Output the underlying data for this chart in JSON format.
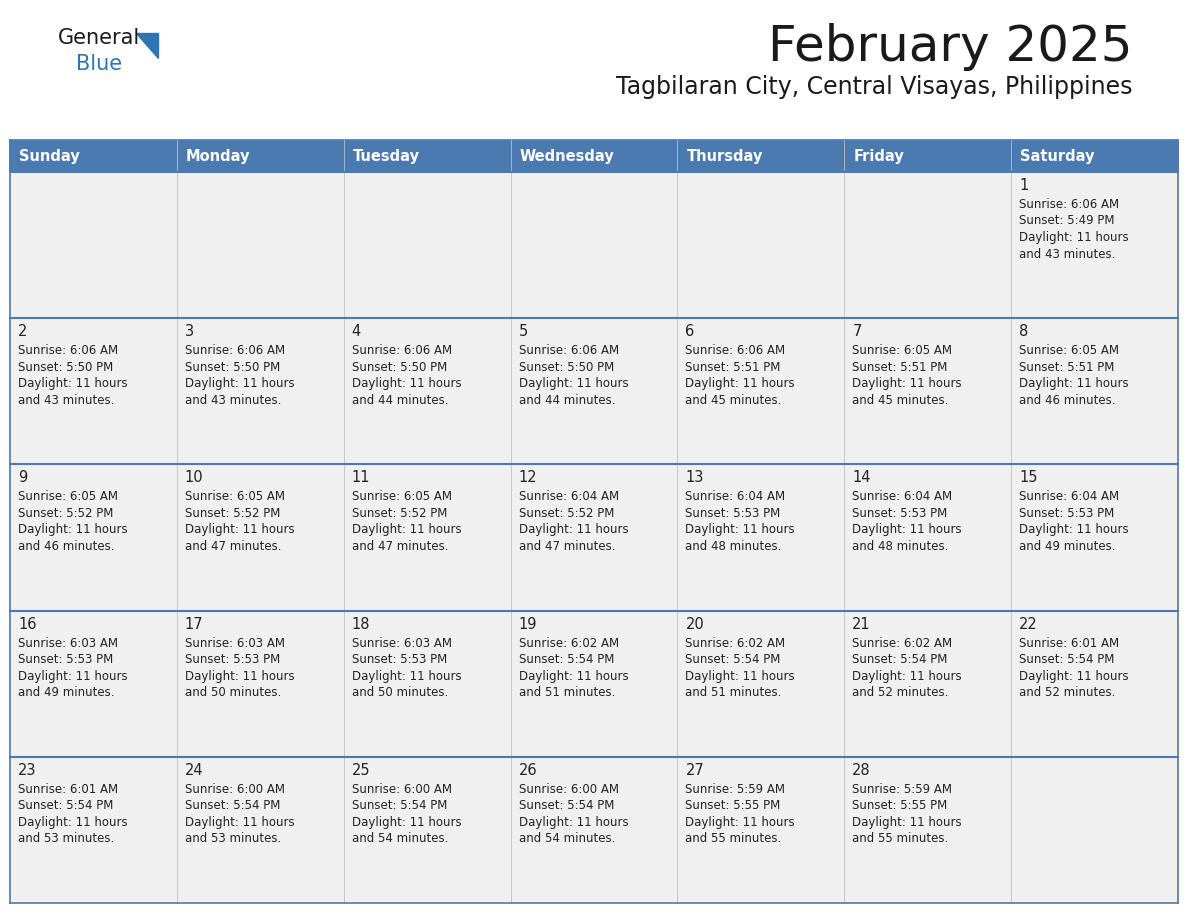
{
  "title": "February 2025",
  "subtitle": "Tagbilaran City, Central Visayas, Philippines",
  "days_of_week": [
    "Sunday",
    "Monday",
    "Tuesday",
    "Wednesday",
    "Thursday",
    "Friday",
    "Saturday"
  ],
  "header_bg": "#4a7aaf",
  "header_text": "#ffffff",
  "row_bg": "#f0f0f0",
  "border_color": "#4a7aaf",
  "col_sep_color": "#c0c0c0",
  "text_color": "#222222",
  "day_num_color": "#222222",
  "logo_general_color": "#1a1a1a",
  "logo_blue_color": "#2e75b6",
  "calendar_data": [
    [
      null,
      null,
      null,
      null,
      null,
      null,
      {
        "day": 1,
        "sunrise": "6:06 AM",
        "sunset": "5:49 PM",
        "daylight": "11 hours and 43 minutes."
      }
    ],
    [
      {
        "day": 2,
        "sunrise": "6:06 AM",
        "sunset": "5:50 PM",
        "daylight": "11 hours and 43 minutes."
      },
      {
        "day": 3,
        "sunrise": "6:06 AM",
        "sunset": "5:50 PM",
        "daylight": "11 hours and 43 minutes."
      },
      {
        "day": 4,
        "sunrise": "6:06 AM",
        "sunset": "5:50 PM",
        "daylight": "11 hours and 44 minutes."
      },
      {
        "day": 5,
        "sunrise": "6:06 AM",
        "sunset": "5:50 PM",
        "daylight": "11 hours and 44 minutes."
      },
      {
        "day": 6,
        "sunrise": "6:06 AM",
        "sunset": "5:51 PM",
        "daylight": "11 hours and 45 minutes."
      },
      {
        "day": 7,
        "sunrise": "6:05 AM",
        "sunset": "5:51 PM",
        "daylight": "11 hours and 45 minutes."
      },
      {
        "day": 8,
        "sunrise": "6:05 AM",
        "sunset": "5:51 PM",
        "daylight": "11 hours and 46 minutes."
      }
    ],
    [
      {
        "day": 9,
        "sunrise": "6:05 AM",
        "sunset": "5:52 PM",
        "daylight": "11 hours and 46 minutes."
      },
      {
        "day": 10,
        "sunrise": "6:05 AM",
        "sunset": "5:52 PM",
        "daylight": "11 hours and 47 minutes."
      },
      {
        "day": 11,
        "sunrise": "6:05 AM",
        "sunset": "5:52 PM",
        "daylight": "11 hours and 47 minutes."
      },
      {
        "day": 12,
        "sunrise": "6:04 AM",
        "sunset": "5:52 PM",
        "daylight": "11 hours and 47 minutes."
      },
      {
        "day": 13,
        "sunrise": "6:04 AM",
        "sunset": "5:53 PM",
        "daylight": "11 hours and 48 minutes."
      },
      {
        "day": 14,
        "sunrise": "6:04 AM",
        "sunset": "5:53 PM",
        "daylight": "11 hours and 48 minutes."
      },
      {
        "day": 15,
        "sunrise": "6:04 AM",
        "sunset": "5:53 PM",
        "daylight": "11 hours and 49 minutes."
      }
    ],
    [
      {
        "day": 16,
        "sunrise": "6:03 AM",
        "sunset": "5:53 PM",
        "daylight": "11 hours and 49 minutes."
      },
      {
        "day": 17,
        "sunrise": "6:03 AM",
        "sunset": "5:53 PM",
        "daylight": "11 hours and 50 minutes."
      },
      {
        "day": 18,
        "sunrise": "6:03 AM",
        "sunset": "5:53 PM",
        "daylight": "11 hours and 50 minutes."
      },
      {
        "day": 19,
        "sunrise": "6:02 AM",
        "sunset": "5:54 PM",
        "daylight": "11 hours and 51 minutes."
      },
      {
        "day": 20,
        "sunrise": "6:02 AM",
        "sunset": "5:54 PM",
        "daylight": "11 hours and 51 minutes."
      },
      {
        "day": 21,
        "sunrise": "6:02 AM",
        "sunset": "5:54 PM",
        "daylight": "11 hours and 52 minutes."
      },
      {
        "day": 22,
        "sunrise": "6:01 AM",
        "sunset": "5:54 PM",
        "daylight": "11 hours and 52 minutes."
      }
    ],
    [
      {
        "day": 23,
        "sunrise": "6:01 AM",
        "sunset": "5:54 PM",
        "daylight": "11 hours and 53 minutes."
      },
      {
        "day": 24,
        "sunrise": "6:00 AM",
        "sunset": "5:54 PM",
        "daylight": "11 hours and 53 minutes."
      },
      {
        "day": 25,
        "sunrise": "6:00 AM",
        "sunset": "5:54 PM",
        "daylight": "11 hours and 54 minutes."
      },
      {
        "day": 26,
        "sunrise": "6:00 AM",
        "sunset": "5:54 PM",
        "daylight": "11 hours and 54 minutes."
      },
      {
        "day": 27,
        "sunrise": "5:59 AM",
        "sunset": "5:55 PM",
        "daylight": "11 hours and 55 minutes."
      },
      {
        "day": 28,
        "sunrise": "5:59 AM",
        "sunset": "5:55 PM",
        "daylight": "11 hours and 55 minutes."
      },
      null
    ]
  ]
}
